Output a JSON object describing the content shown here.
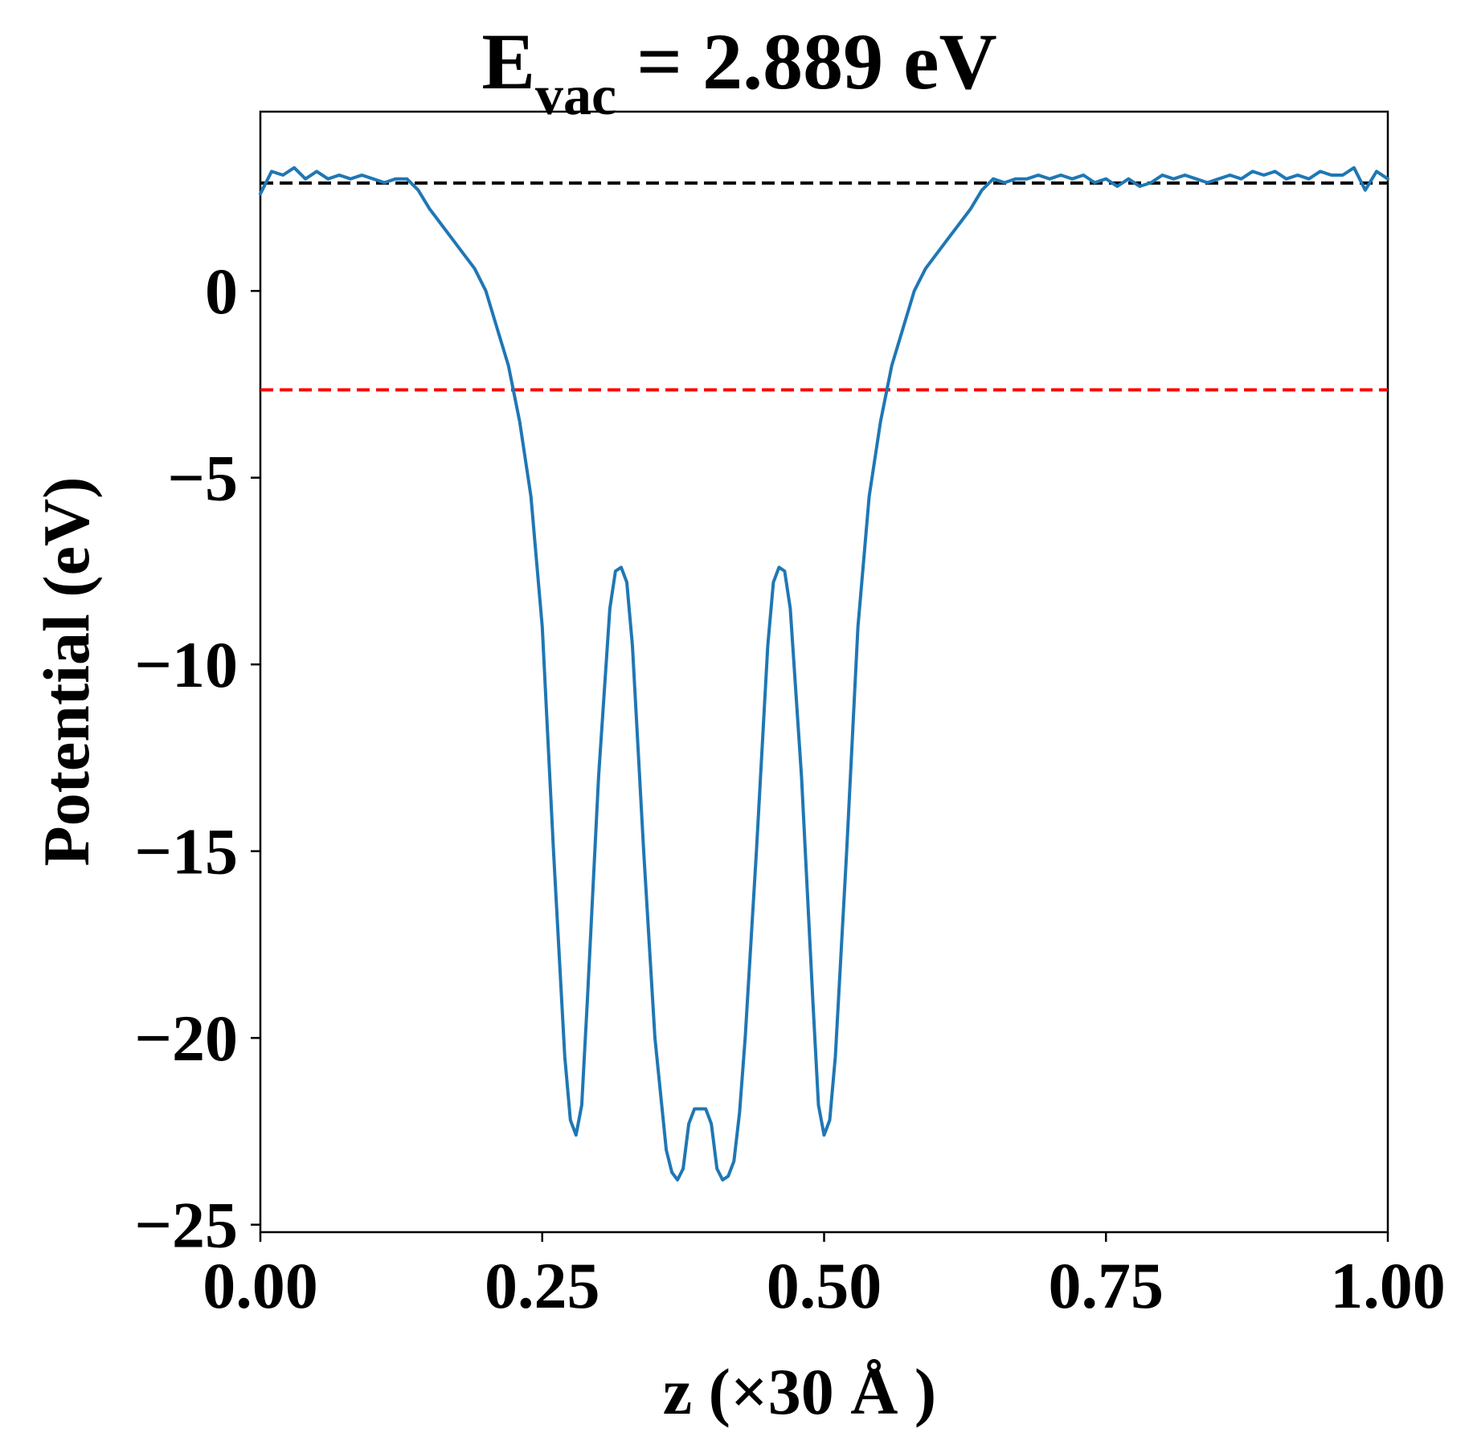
{
  "chart_data": {
    "type": "line",
    "title": {
      "main": "E",
      "subscript": "vac",
      "rest": " = 2.889 eV"
    },
    "xlabel": "z (×30 Å )",
    "ylabel": "Potential (eV)",
    "xlim": [
      0,
      1
    ],
    "ylim": [
      -25.2,
      4.8
    ],
    "xticks": [
      0,
      0.25,
      0.5,
      0.75,
      1.0
    ],
    "xtick_labels": [
      "0.00",
      "0.25",
      "0.50",
      "0.75",
      "1.00"
    ],
    "yticks": [
      0,
      -5,
      -10,
      -15,
      -20,
      -25
    ],
    "ytick_labels": [
      "0",
      "−5",
      "−10",
      "−15",
      "−20",
      "−25"
    ],
    "grid": false,
    "reference_lines": [
      {
        "y": 2.889,
        "color": "#000000",
        "style": "dashed"
      },
      {
        "y": -2.65,
        "color": "#ff0000",
        "style": "dashed"
      }
    ],
    "series": [
      {
        "color": "#1f77b4",
        "x": [
          0.0,
          0.01,
          0.02,
          0.03,
          0.04,
          0.05,
          0.06,
          0.07,
          0.08,
          0.09,
          0.1,
          0.11,
          0.12,
          0.13,
          0.14,
          0.15,
          0.16,
          0.17,
          0.18,
          0.19,
          0.2,
          0.21,
          0.22,
          0.23,
          0.24,
          0.25,
          0.26,
          0.27,
          0.275,
          0.28,
          0.285,
          0.29,
          0.3,
          0.31,
          0.315,
          0.32,
          0.325,
          0.33,
          0.34,
          0.35,
          0.36,
          0.365,
          0.37,
          0.375,
          0.38,
          0.385,
          0.39,
          0.395,
          0.4,
          0.405,
          0.41,
          0.415,
          0.42,
          0.425,
          0.43,
          0.44,
          0.45,
          0.455,
          0.46,
          0.465,
          0.47,
          0.48,
          0.49,
          0.495,
          0.5,
          0.505,
          0.51,
          0.52,
          0.53,
          0.54,
          0.55,
          0.56,
          0.57,
          0.58,
          0.59,
          0.6,
          0.61,
          0.62,
          0.63,
          0.64,
          0.65,
          0.66,
          0.67,
          0.68,
          0.69,
          0.7,
          0.71,
          0.72,
          0.73,
          0.74,
          0.75,
          0.76,
          0.77,
          0.78,
          0.79,
          0.8,
          0.81,
          0.82,
          0.83,
          0.84,
          0.85,
          0.86,
          0.87,
          0.88,
          0.89,
          0.9,
          0.91,
          0.92,
          0.93,
          0.94,
          0.95,
          0.96,
          0.97,
          0.98,
          0.99,
          1.0
        ],
        "y": [
          2.6,
          3.2,
          3.1,
          3.3,
          3.0,
          3.2,
          3.0,
          3.1,
          3.0,
          3.1,
          3.0,
          2.9,
          3.0,
          3.0,
          2.7,
          2.2,
          1.8,
          1.4,
          1.0,
          0.6,
          0.0,
          -1.0,
          -2.0,
          -3.5,
          -5.5,
          -9.0,
          -15.0,
          -20.5,
          -22.2,
          -22.6,
          -21.8,
          -19.0,
          -13.0,
          -8.5,
          -7.5,
          -7.4,
          -7.8,
          -9.5,
          -15.0,
          -20.0,
          -23.0,
          -23.6,
          -23.8,
          -23.5,
          -22.3,
          -21.9,
          -21.9,
          -21.9,
          -22.3,
          -23.5,
          -23.8,
          -23.7,
          -23.3,
          -22.0,
          -20.0,
          -15.0,
          -9.5,
          -7.8,
          -7.4,
          -7.5,
          -8.5,
          -13.0,
          -19.0,
          -21.8,
          -22.6,
          -22.2,
          -20.5,
          -15.0,
          -9.0,
          -5.5,
          -3.5,
          -2.0,
          -1.0,
          0.0,
          0.6,
          1.0,
          1.4,
          1.8,
          2.2,
          2.7,
          3.0,
          2.9,
          3.0,
          3.0,
          3.1,
          3.0,
          3.1,
          3.0,
          3.1,
          2.9,
          3.0,
          2.8,
          3.0,
          2.8,
          2.9,
          3.1,
          3.0,
          3.1,
          3.0,
          2.9,
          3.0,
          3.1,
          3.0,
          3.2,
          3.1,
          3.2,
          3.0,
          3.1,
          3.0,
          3.2,
          3.1,
          3.1,
          3.3,
          2.7,
          3.2,
          3.0
        ]
      }
    ]
  }
}
